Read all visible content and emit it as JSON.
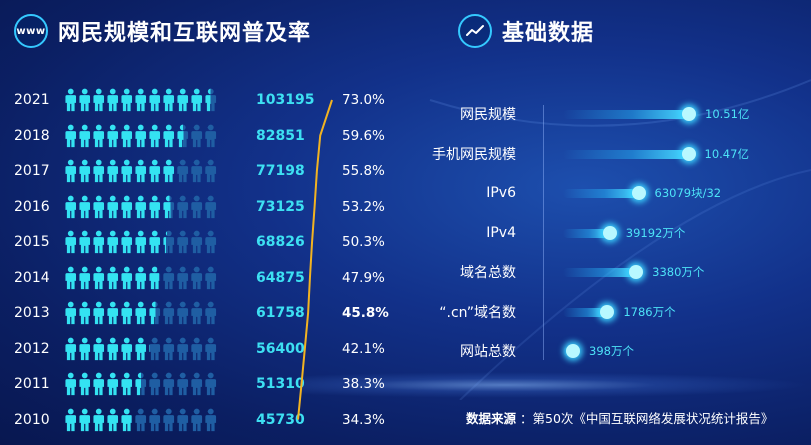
{
  "colors": {
    "bg_dark": "#0b1f63",
    "accent_cyan": "#3de0f2",
    "person_filled": "#34e3f2",
    "person_empty": "#1f5ea3",
    "trend_line": "#f2b321"
  },
  "left_section": {
    "icon_text": "www",
    "title": "网民规模和互联网普及率"
  },
  "right_section": {
    "icon": "trend-line-icon",
    "title": "基础数据"
  },
  "chart_data": [
    {
      "type": "table",
      "title": "网民规模和互联网普及率",
      "columns": [
        "year",
        "netizens",
        "penetration"
      ],
      "people_scale_max": 11,
      "rows": [
        {
          "year": "2021",
          "netizens": "103195",
          "penetration": "73.0%",
          "pct": 73.0
        },
        {
          "year": "2018",
          "netizens": "82851",
          "penetration": "59.6%",
          "pct": 59.6
        },
        {
          "year": "2017",
          "netizens": "77198",
          "penetration": "55.8%",
          "pct": 55.8
        },
        {
          "year": "2016",
          "netizens": "73125",
          "penetration": "53.2%",
          "pct": 53.2
        },
        {
          "year": "2015",
          "netizens": "68826",
          "penetration": "50.3%",
          "pct": 50.3
        },
        {
          "year": "2014",
          "netizens": "64875",
          "penetration": "47.9%",
          "pct": 47.9
        },
        {
          "year": "2013",
          "netizens": "61758",
          "penetration": "45.8%",
          "pct": 45.8
        },
        {
          "year": "2012",
          "netizens": "56400",
          "penetration": "42.1%",
          "pct": 42.1
        },
        {
          "year": "2011",
          "netizens": "51310",
          "penetration": "38.3%",
          "pct": 38.3
        },
        {
          "year": "2010",
          "netizens": "45730",
          "penetration": "34.3%",
          "pct": 34.3
        }
      ]
    },
    {
      "type": "bar",
      "title": "基础数据",
      "bar_max": 10.51,
      "items": [
        {
          "label": "网民规模",
          "value_text": "10.51亿",
          "bar_value": 10.51
        },
        {
          "label": "手机网民规模",
          "value_text": "10.47亿",
          "bar_value": 10.47
        },
        {
          "label": "IPv6",
          "value_text": "63079块/32",
          "bar_value": 6.3
        },
        {
          "label": "IPv4",
          "value_text": "39192万个",
          "bar_value": 3.9
        },
        {
          "label": "域名总数",
          "value_text": "3380万个",
          "bar_value": 6.1
        },
        {
          "label": "“.cn”域名数",
          "value_text": "1786万个",
          "bar_value": 3.7
        },
        {
          "label": "网站总数",
          "value_text": "398万个",
          "bar_value": 0.4
        }
      ]
    }
  ],
  "source": {
    "label": "数据来源",
    "text": "：第50次《中国互联网络发展状况统计报告》"
  }
}
